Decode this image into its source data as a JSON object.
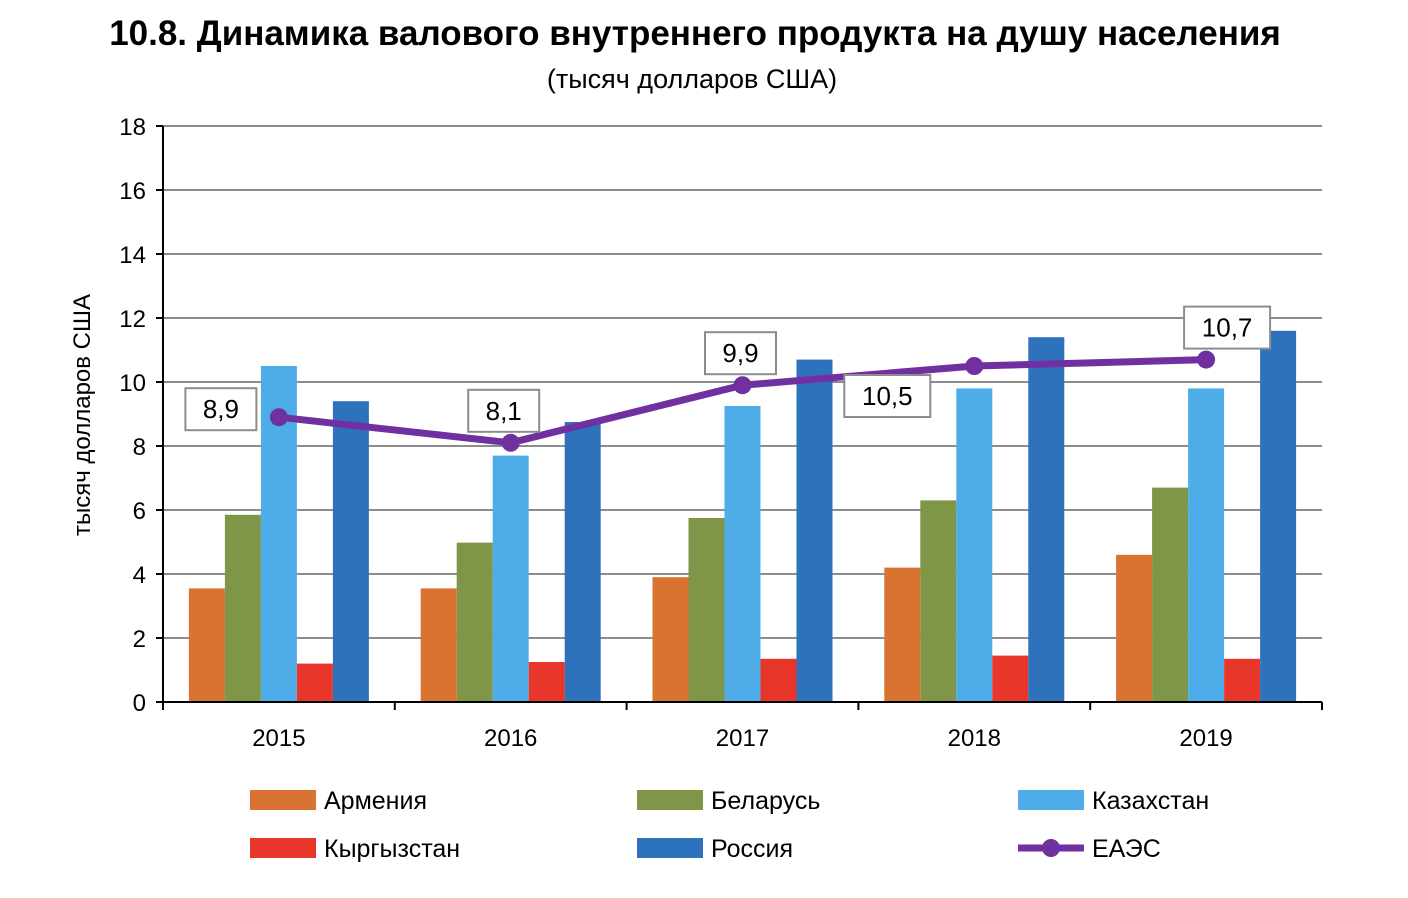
{
  "chart_data": {
    "type": "bar",
    "title": "10.8. Динамика валового внутреннего продукта на душу населения",
    "subtitle": "(тысяч долларов США)",
    "ylabel": "тысяч долларов США",
    "xlabel": "",
    "ylim": [
      0,
      18
    ],
    "yticks": [
      0,
      2,
      4,
      6,
      8,
      10,
      12,
      14,
      16,
      18
    ],
    "grid": true,
    "legend_position": "bottom",
    "categories": [
      "2015",
      "2016",
      "2017",
      "2018",
      "2019"
    ],
    "series": [
      {
        "name": "Армения",
        "kind": "bar",
        "color": "#D97331",
        "values": [
          3.55,
          3.55,
          3.9,
          4.2,
          4.6
        ]
      },
      {
        "name": "Беларусь",
        "kind": "bar",
        "color": "#7F9648",
        "values": [
          5.85,
          4.98,
          5.75,
          6.3,
          6.7
        ]
      },
      {
        "name": "Казахстан",
        "kind": "bar",
        "color": "#4EADE8",
        "values": [
          10.5,
          7.7,
          9.25,
          9.8,
          9.8
        ]
      },
      {
        "name": "Кыргызстан",
        "kind": "bar",
        "color": "#E8372A",
        "values": [
          1.2,
          1.25,
          1.35,
          1.45,
          1.35
        ]
      },
      {
        "name": "Россия",
        "kind": "bar",
        "color": "#2E72BC",
        "values": [
          9.4,
          8.75,
          10.7,
          11.4,
          11.6
        ]
      },
      {
        "name": "ЕАЭС",
        "kind": "line",
        "color": "#7030A0",
        "values": [
          8.9,
          8.1,
          9.9,
          10.5,
          10.7
        ],
        "labels": [
          "8,9",
          "8,1",
          "9,9",
          "10,5",
          "10,7"
        ]
      }
    ]
  }
}
